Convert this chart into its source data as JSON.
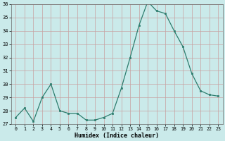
{
  "x": [
    0,
    1,
    2,
    3,
    4,
    5,
    6,
    7,
    8,
    9,
    10,
    11,
    12,
    13,
    14,
    15,
    16,
    17,
    18,
    19,
    20,
    21,
    22,
    23
  ],
  "y": [
    27.5,
    28.2,
    27.2,
    29.0,
    30.0,
    28.0,
    27.8,
    27.8,
    27.3,
    27.3,
    27.5,
    27.8,
    29.7,
    32.0,
    34.4,
    36.2,
    35.5,
    35.3,
    34.0,
    32.8,
    30.8,
    29.5,
    29.2,
    29.1
  ],
  "xlabel": "Humidex (Indice chaleur)",
  "ylim": [
    27,
    36
  ],
  "yticks": [
    27,
    28,
    29,
    30,
    31,
    32,
    33,
    34,
    35,
    36
  ],
  "xticks": [
    0,
    1,
    2,
    3,
    4,
    5,
    6,
    7,
    8,
    9,
    10,
    11,
    12,
    13,
    14,
    15,
    16,
    17,
    18,
    19,
    20,
    21,
    22,
    23
  ],
  "line_color": "#2d7d6e",
  "bg_color": "#caeaea",
  "grid_color": "#b0d8d8"
}
